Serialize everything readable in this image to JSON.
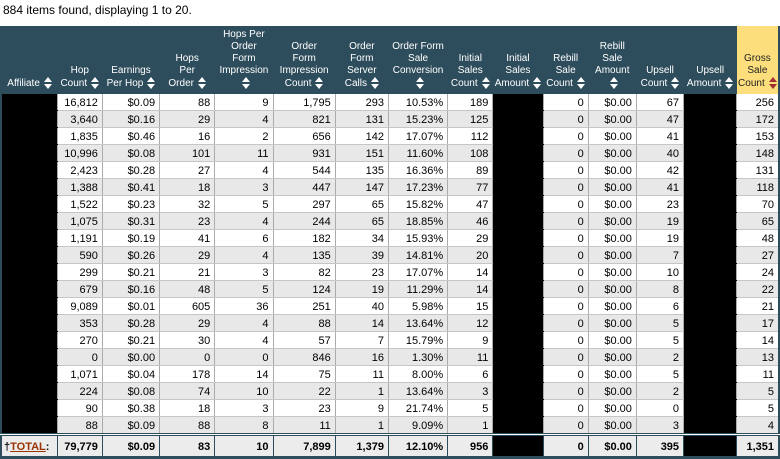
{
  "page": {
    "items_summary": "884 items found, displaying 1 to 20."
  },
  "table": {
    "header_bg": "#2E4D5C",
    "highlight_color": "#FCDE7C",
    "sort_arrow_color": "#FFFFFF",
    "sort_arrow_active_color": "#A03030",
    "columns": [
      {
        "key": "affiliate",
        "label": "Affiliate",
        "sortable": true,
        "highlight": false
      },
      {
        "key": "hop-count",
        "label": "Hop\nCount",
        "sortable": true,
        "highlight": false
      },
      {
        "key": "earnings-per-hop",
        "label": "Earnings\nPer Hop",
        "sortable": true,
        "highlight": false
      },
      {
        "key": "hops-per-order",
        "label": "Hops\nPer\nOrder",
        "sortable": true,
        "highlight": false
      },
      {
        "key": "hops-per-order-form-impression",
        "label": "Hops Per\nOrder\nForm\nImpression",
        "sortable": true,
        "highlight": false
      },
      {
        "key": "order-form-impression-count",
        "label": "Order\nForm\nImpression\nCount",
        "sortable": true,
        "highlight": false
      },
      {
        "key": "order-form-server-calls",
        "label": "Order\nForm\nServer\nCalls",
        "sortable": true,
        "highlight": false
      },
      {
        "key": "order-form-sale-conversion",
        "label": "Order Form\nSale\nConversion",
        "sortable": true,
        "highlight": false
      },
      {
        "key": "initial-sales-count",
        "label": "Initial\nSales\nCount",
        "sortable": true,
        "highlight": false
      },
      {
        "key": "initial-sales-amount",
        "label": "Initial\nSales\nAmount",
        "sortable": true,
        "highlight": false
      },
      {
        "key": "rebill-sale-count",
        "label": "Rebill\nSale\nCount",
        "sortable": true,
        "highlight": false
      },
      {
        "key": "rebill-sale-amount",
        "label": "Rebill\nSale\nAmount",
        "sortable": true,
        "highlight": false
      },
      {
        "key": "upsell-count",
        "label": "Upsell\nCount",
        "sortable": true,
        "highlight": false
      },
      {
        "key": "upsell-amount",
        "label": "Upsell\nAmount",
        "sortable": true,
        "highlight": false
      },
      {
        "key": "gross-sale-count",
        "label": "Gross\nSale\nCount",
        "sortable": true,
        "highlight": true
      }
    ],
    "rows": [
      [
        null,
        "16,812",
        "$0.09",
        "88",
        "9",
        "1,795",
        "293",
        "10.53%",
        "189",
        null,
        "0",
        "$0.00",
        "67",
        null,
        "256"
      ],
      [
        null,
        "3,640",
        "$0.16",
        "29",
        "4",
        "821",
        "131",
        "15.23%",
        "125",
        null,
        "0",
        "$0.00",
        "47",
        null,
        "172"
      ],
      [
        null,
        "1,835",
        "$0.46",
        "16",
        "2",
        "656",
        "142",
        "17.07%",
        "112",
        null,
        "0",
        "$0.00",
        "41",
        null,
        "153"
      ],
      [
        null,
        "10,996",
        "$0.08",
        "101",
        "11",
        "931",
        "151",
        "11.60%",
        "108",
        null,
        "0",
        "$0.00",
        "40",
        null,
        "148"
      ],
      [
        null,
        "2,423",
        "$0.28",
        "27",
        "4",
        "544",
        "135",
        "16.36%",
        "89",
        null,
        "0",
        "$0.00",
        "42",
        null,
        "131"
      ],
      [
        null,
        "1,388",
        "$0.41",
        "18",
        "3",
        "447",
        "147",
        "17.23%",
        "77",
        null,
        "0",
        "$0.00",
        "41",
        null,
        "118"
      ],
      [
        null,
        "1,522",
        "$0.23",
        "32",
        "5",
        "297",
        "65",
        "15.82%",
        "47",
        null,
        "0",
        "$0.00",
        "23",
        null,
        "70"
      ],
      [
        null,
        "1,075",
        "$0.31",
        "23",
        "4",
        "244",
        "65",
        "18.85%",
        "46",
        null,
        "0",
        "$0.00",
        "19",
        null,
        "65"
      ],
      [
        null,
        "1,191",
        "$0.19",
        "41",
        "6",
        "182",
        "34",
        "15.93%",
        "29",
        null,
        "0",
        "$0.00",
        "19",
        null,
        "48"
      ],
      [
        null,
        "590",
        "$0.26",
        "29",
        "4",
        "135",
        "39",
        "14.81%",
        "20",
        null,
        "0",
        "$0.00",
        "7",
        null,
        "27"
      ],
      [
        null,
        "299",
        "$0.21",
        "21",
        "3",
        "82",
        "23",
        "17.07%",
        "14",
        null,
        "0",
        "$0.00",
        "10",
        null,
        "24"
      ],
      [
        null,
        "679",
        "$0.16",
        "48",
        "5",
        "124",
        "19",
        "11.29%",
        "14",
        null,
        "0",
        "$0.00",
        "8",
        null,
        "22"
      ],
      [
        null,
        "9,089",
        "$0.01",
        "605",
        "36",
        "251",
        "40",
        "5.98%",
        "15",
        null,
        "0",
        "$0.00",
        "6",
        null,
        "21"
      ],
      [
        null,
        "353",
        "$0.28",
        "29",
        "4",
        "88",
        "14",
        "13.64%",
        "12",
        null,
        "0",
        "$0.00",
        "5",
        null,
        "17"
      ],
      [
        null,
        "270",
        "$0.21",
        "30",
        "4",
        "57",
        "7",
        "15.79%",
        "9",
        null,
        "0",
        "$0.00",
        "5",
        null,
        "14"
      ],
      [
        null,
        "0",
        "$0.00",
        "0",
        "0",
        "846",
        "16",
        "1.30%",
        "11",
        null,
        "0",
        "$0.00",
        "2",
        null,
        "13"
      ],
      [
        null,
        "1,071",
        "$0.04",
        "178",
        "14",
        "75",
        "11",
        "8.00%",
        "6",
        null,
        "0",
        "$0.00",
        "5",
        null,
        "11"
      ],
      [
        null,
        "224",
        "$0.08",
        "74",
        "10",
        "22",
        "1",
        "13.64%",
        "3",
        null,
        "0",
        "$0.00",
        "2",
        null,
        "5"
      ],
      [
        null,
        "90",
        "$0.38",
        "18",
        "3",
        "23",
        "9",
        "21.74%",
        "5",
        null,
        "0",
        "$0.00",
        "0",
        null,
        "5"
      ],
      [
        null,
        "88",
        "$0.09",
        "88",
        "8",
        "11",
        "1",
        "9.09%",
        "1",
        null,
        "0",
        "$0.00",
        "3",
        null,
        "4"
      ]
    ],
    "footer": {
      "dagger": "†",
      "total_label": "TOTAL",
      "colon": ":",
      "values": [
        "79,779",
        "$0.09",
        "83",
        "10",
        "7,899",
        "1,379",
        "12.10%",
        "956",
        null,
        "0",
        "$0.00",
        "395",
        null,
        "1,351"
      ]
    }
  }
}
